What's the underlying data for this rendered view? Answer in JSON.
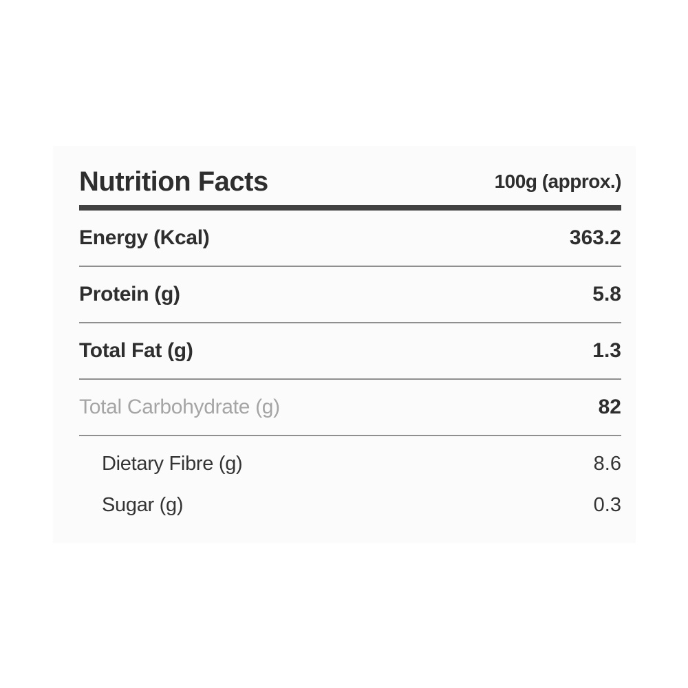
{
  "panel": {
    "title": "Nutrition Facts",
    "serving": "100g (approx.)",
    "rows": [
      {
        "label": "Energy (Kcal)",
        "value": "363.2"
      },
      {
        "label": "Protein (g)",
        "value": "5.8"
      },
      {
        "label": "Total Fat (g)",
        "value": "1.3"
      },
      {
        "label": "Total Carbohydrate (g)",
        "value": "82"
      },
      {
        "label": "Dietary Fibre (g)",
        "value": "8.6"
      },
      {
        "label": "Sugar (g)",
        "value": "0.3"
      }
    ],
    "colors": {
      "panel_background": "#fbfbfb",
      "text_dark": "#2e2e2e",
      "muted_label": "#a5a5a5",
      "thick_rule": "#414141",
      "thin_rule": "#8f8f8f"
    }
  }
}
